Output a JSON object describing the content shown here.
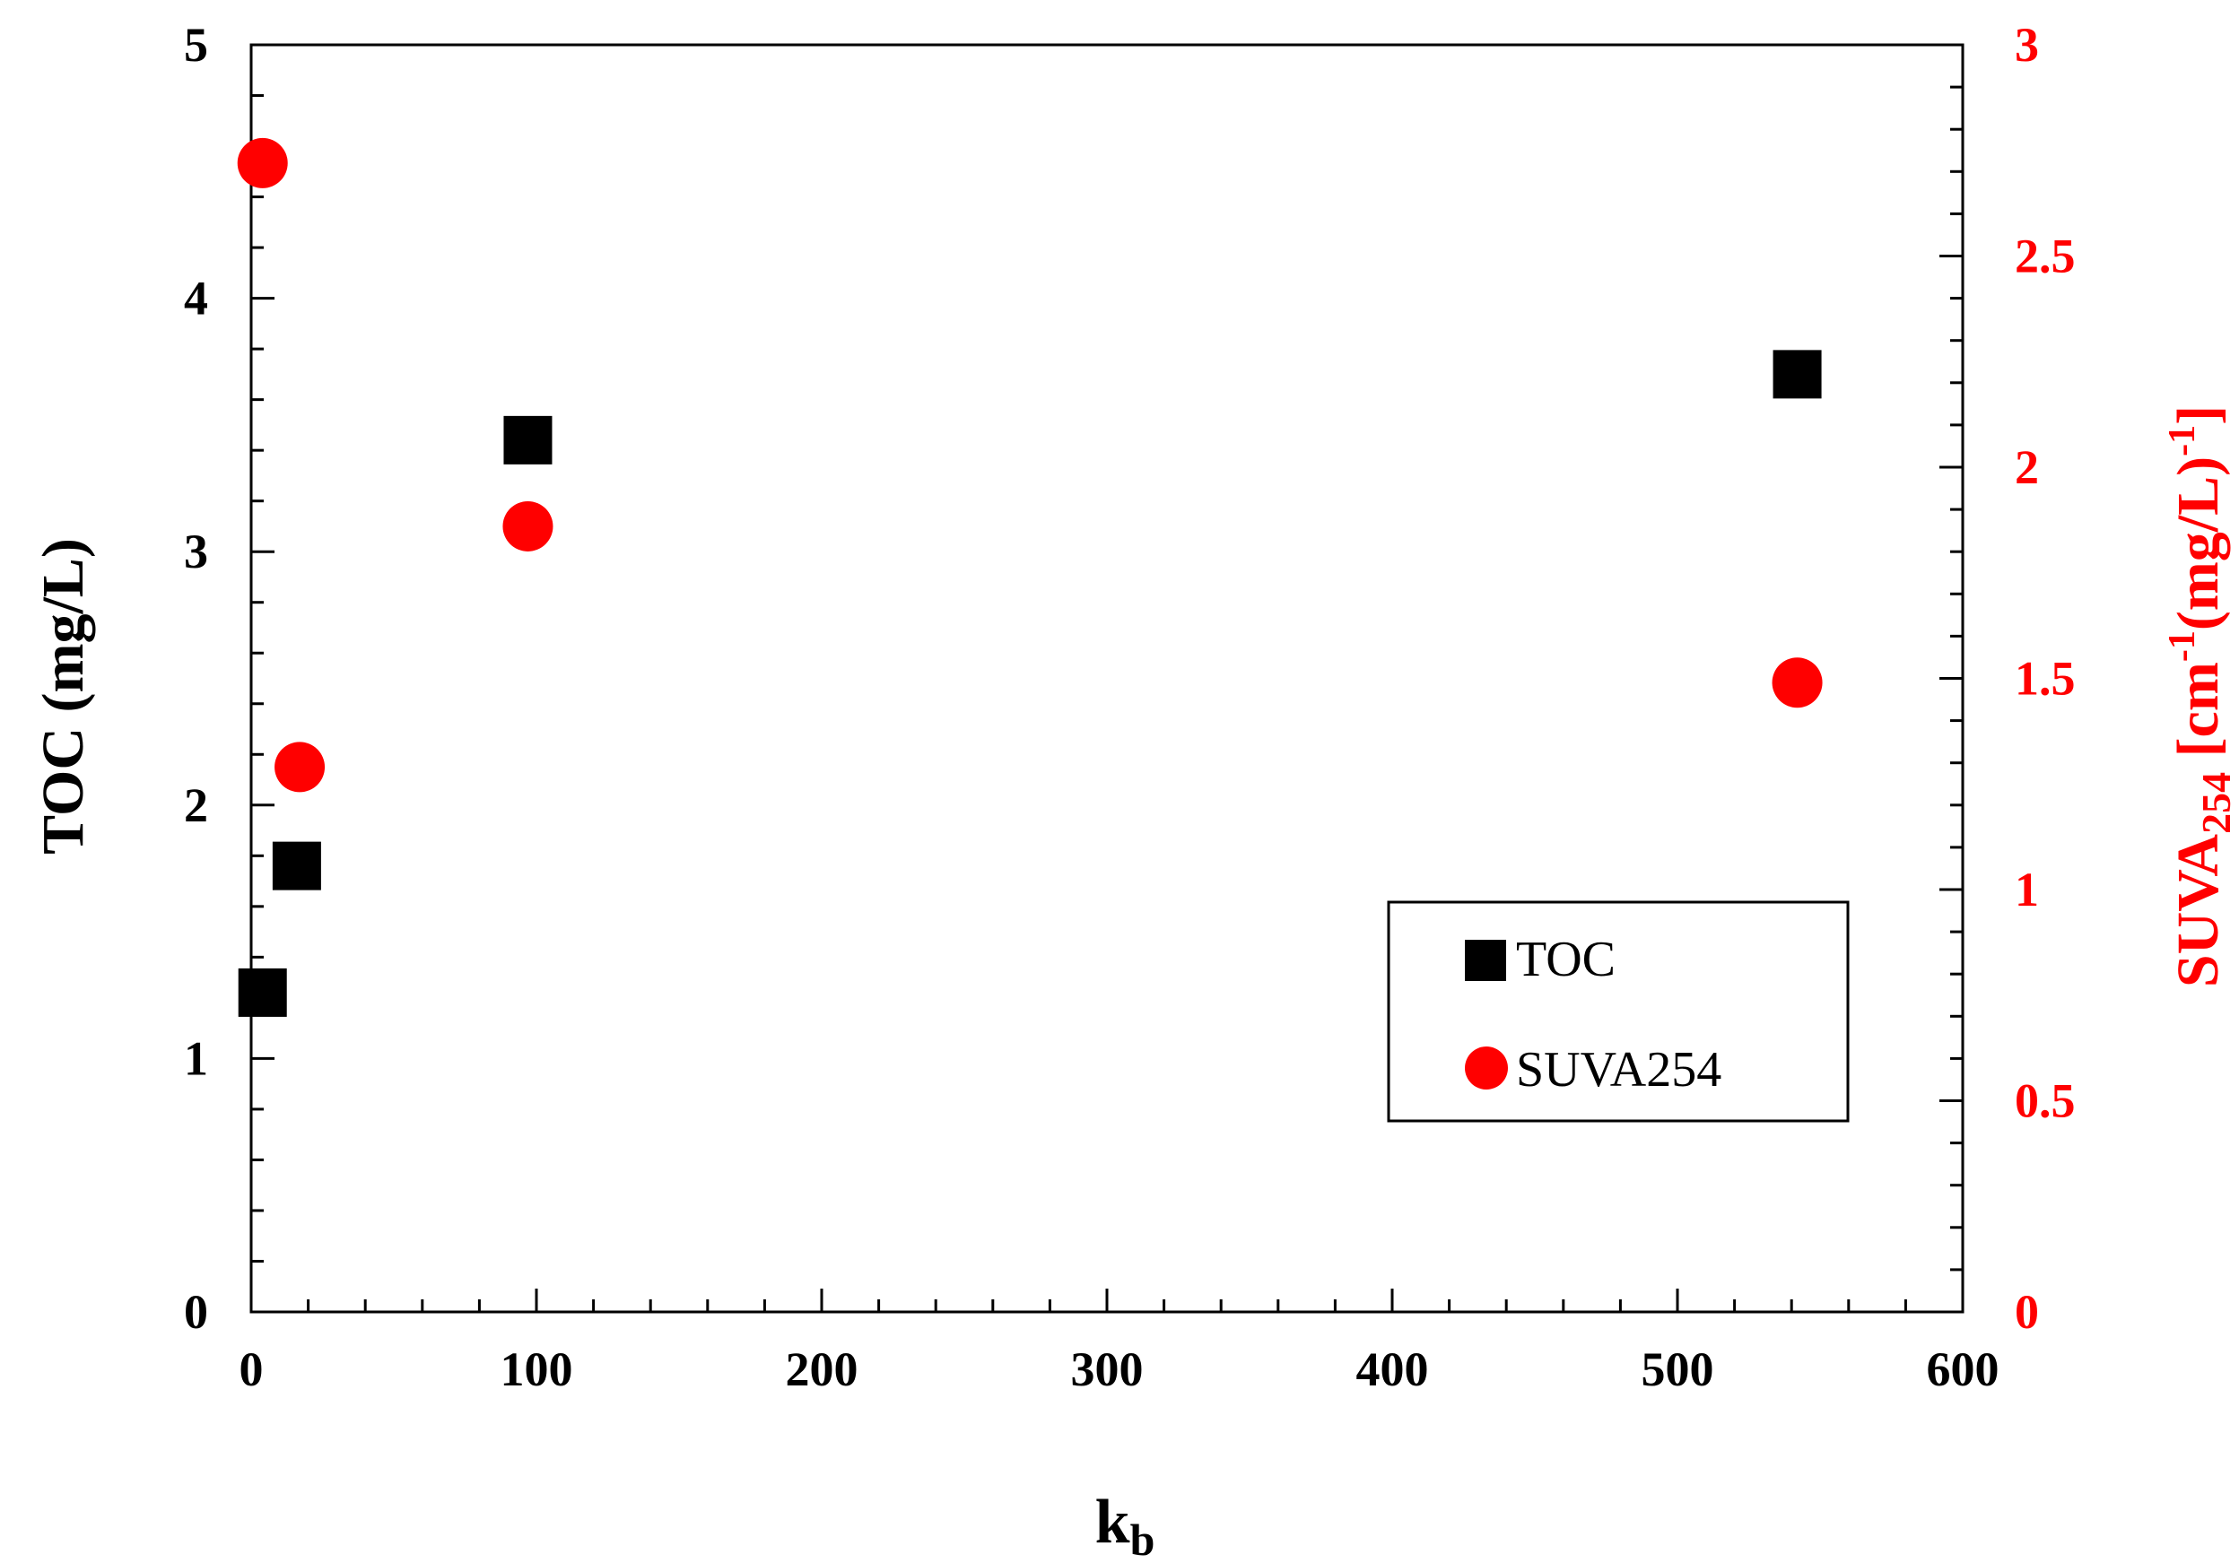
{
  "chart_data": {
    "type": "scatter",
    "x_axis": {
      "label_main": "k",
      "label_sub": "b",
      "min": 0,
      "max": 600,
      "major_ticks": [
        0,
        100,
        200,
        300,
        400,
        500,
        600
      ],
      "tick_labels": [
        "0",
        "100",
        "200",
        "300",
        "400",
        "500",
        "600"
      ],
      "minor_step": 20
    },
    "y_left": {
      "label": "TOC (mg/L)",
      "min": 0,
      "max": 5,
      "major_ticks": [
        0,
        1,
        2,
        3,
        4,
        5
      ],
      "tick_labels": [
        "0",
        "1",
        "2",
        "3",
        "4",
        "5"
      ],
      "minor_step": 0.2,
      "color": "#000000"
    },
    "y_right": {
      "label_main": "SUVA",
      "label_sub": "254",
      "label_rest": " [cm",
      "label_sup1": "-1",
      "label_rest2": "(mg/L)",
      "label_sup2": "-1",
      "label_end": "]",
      "min": 0,
      "max": 3,
      "major_ticks": [
        0,
        0.5,
        1,
        1.5,
        2,
        2.5,
        3
      ],
      "tick_labels": [
        "0",
        "0.5",
        "1",
        "1.5",
        "2",
        "2.5",
        "3"
      ],
      "minor_step": 0.1,
      "color": "#ff0000"
    },
    "series": [
      {
        "name": "TOC",
        "axis": "left",
        "marker": "square",
        "color": "#000000",
        "points": [
          {
            "x": 4,
            "y": 1.26
          },
          {
            "x": 16,
            "y": 1.76
          },
          {
            "x": 97,
            "y": 3.44
          },
          {
            "x": 542,
            "y": 3.7
          }
        ]
      },
      {
        "name": "SUVA254",
        "axis": "right",
        "marker": "circle",
        "color": "#ff0000",
        "points": [
          {
            "x": 4,
            "y": 2.72
          },
          {
            "x": 17,
            "y": 1.29
          },
          {
            "x": 97,
            "y": 1.86
          },
          {
            "x": 542,
            "y": 1.49
          }
        ]
      }
    ],
    "legend": {
      "position": "bottom-right",
      "entries": [
        "TOC",
        "SUVA254"
      ]
    },
    "grid": false
  }
}
